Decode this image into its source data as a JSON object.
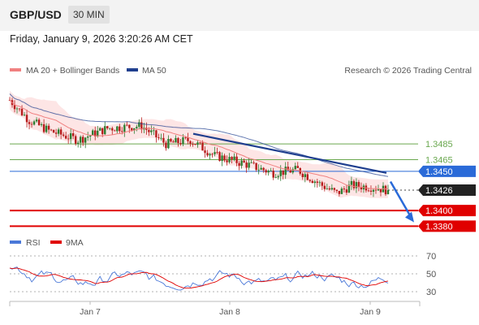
{
  "header": {
    "symbol": "GBP/USD",
    "timeframe": "30 MIN",
    "datetime": "Friday, January 9, 2026 3:20:26 AM CET"
  },
  "legend": {
    "ma20_label": "MA 20 + Bollinger Bands",
    "ma50_label": "MA 50",
    "credit": "Research © 2026 Trading Central",
    "rsi_label": "RSI",
    "ma9_label": "9MA"
  },
  "colors": {
    "ma20": "#f08080",
    "ma50": "#1f3f8f",
    "bollinger_fill": "#fde0e0",
    "up_candle": "#2e7d32",
    "down_candle": "#b71c1c",
    "resistance_green": "#6aa84f",
    "pivot_blue": "#2a6ad8",
    "support_red": "#e00000",
    "last_price_box": "#222222",
    "rsi": "#4a78d8"
  },
  "chart_data": [
    {
      "type": "candlestick",
      "title": "GBP/USD",
      "x_ticks": [
        "Jan 7",
        "Jan 8",
        "Jan 9"
      ],
      "y_range": [
        1.3368,
        1.3565
      ],
      "price_start": 1.3541,
      "price_end": 1.3426,
      "levels": [
        {
          "value": 1.3485,
          "label": "1.3485",
          "kind": "resistance"
        },
        {
          "value": 1.3465,
          "label": "1.3465",
          "kind": "resistance"
        },
        {
          "value": 1.345,
          "label": "1.3450",
          "kind": "pivot"
        },
        {
          "value": 1.3426,
          "label": "1.3426",
          "kind": "last"
        },
        {
          "value": 1.34,
          "label": "1.3400",
          "kind": "support"
        },
        {
          "value": 1.338,
          "label": "1.3380",
          "kind": "support"
        }
      ],
      "trendline": {
        "from": 1.3498,
        "to": 1.3448
      },
      "forecast_arrow": {
        "from": 1.3437,
        "to": 1.3385
      }
    },
    {
      "type": "line",
      "title": "RSI",
      "y_range": [
        20,
        80
      ],
      "y_ticks": [
        "70",
        "50",
        "30"
      ],
      "series": [
        {
          "name": "RSI"
        },
        {
          "name": "9MA"
        }
      ]
    }
  ]
}
